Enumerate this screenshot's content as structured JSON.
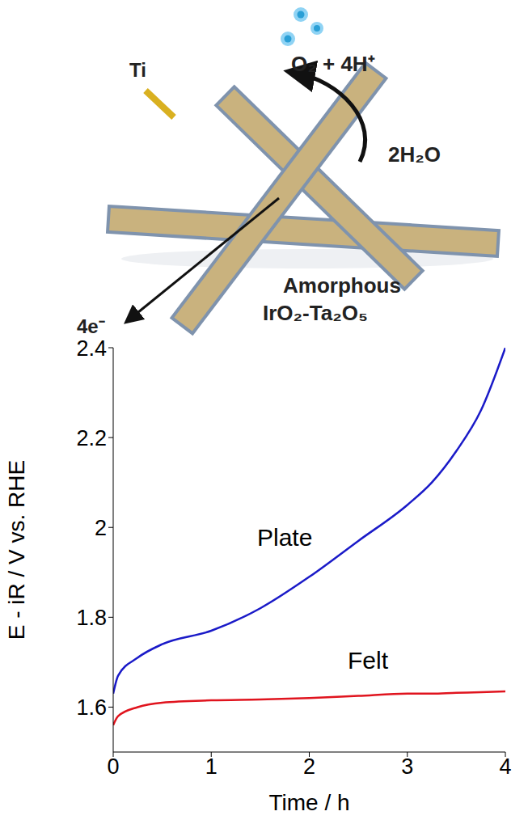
{
  "diagram": {
    "labels": {
      "metal": "Ti",
      "product": "O₂ + 4H⁺",
      "reactant": "2H₂O",
      "electrons": "4e⁻",
      "material": "Amorphous IrO₂-Ta₂O₅"
    }
  },
  "chart_data": {
    "type": "line",
    "x_label": "Time / h",
    "y_label": "E - iR / V vs. RHE",
    "x": [
      0,
      0.05,
      0.25,
      0.5,
      1,
      1.5,
      2,
      2.5,
      3,
      3.25,
      3.5,
      3.75,
      4
    ],
    "series": [
      {
        "name": "Plate",
        "color": "#1a1ac8",
        "values": [
          1.63,
          1.67,
          1.71,
          1.74,
          1.77,
          1.82,
          1.89,
          1.97,
          2.05,
          2.1,
          2.17,
          2.26,
          2.4
        ]
      },
      {
        "name": "Felt",
        "color": "#e0141e",
        "values": [
          1.56,
          1.58,
          1.6,
          1.61,
          1.615,
          1.617,
          1.62,
          1.625,
          1.63,
          1.63,
          1.632,
          1.633,
          1.635
        ]
      }
    ],
    "xlim": [
      0,
      4
    ],
    "xticks": [
      0,
      1,
      2,
      3,
      4
    ],
    "ylim": [
      1.5,
      2.4
    ],
    "yticks": [
      1.6,
      1.8,
      2,
      2.2,
      2.4
    ],
    "grid": false
  }
}
